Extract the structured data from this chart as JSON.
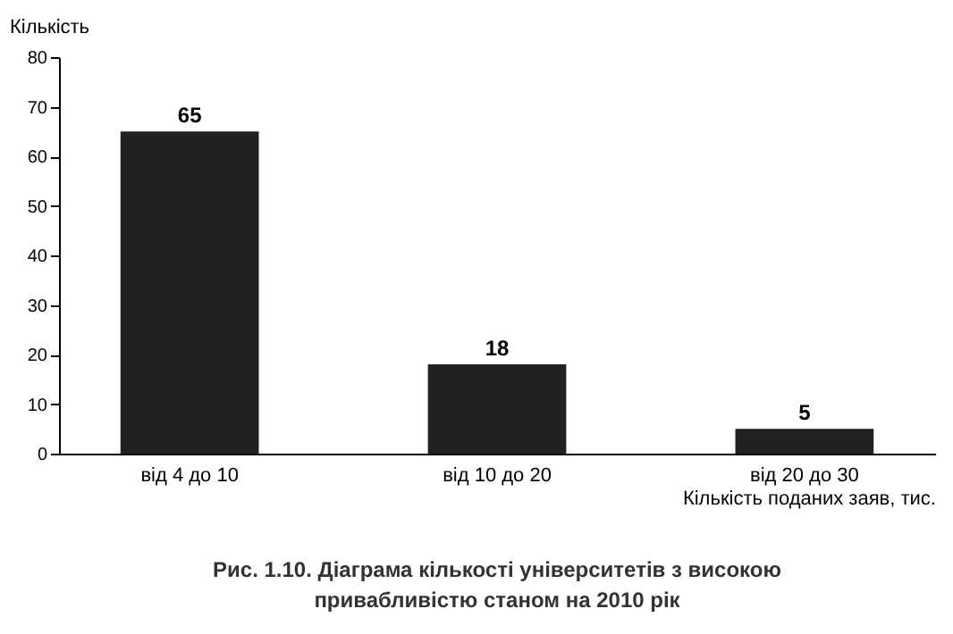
{
  "chart_data": {
    "type": "bar",
    "title": "Рис. 1.10. Діаграма кількості університетів з високою привабливістю станом на 2010 рік",
    "xlabel": "Кількість поданих заяв, тис.",
    "ylabel": "Кількість",
    "categories": [
      "від 4 до 10",
      "від 10 до 20",
      "від 20 до 30"
    ],
    "values": [
      65,
      18,
      5
    ],
    "color": "#222222",
    "ylim": [
      0,
      80
    ],
    "yticks": [
      0,
      10,
      20,
      30,
      40,
      50,
      60,
      70,
      80
    ],
    "data_labels": true
  }
}
